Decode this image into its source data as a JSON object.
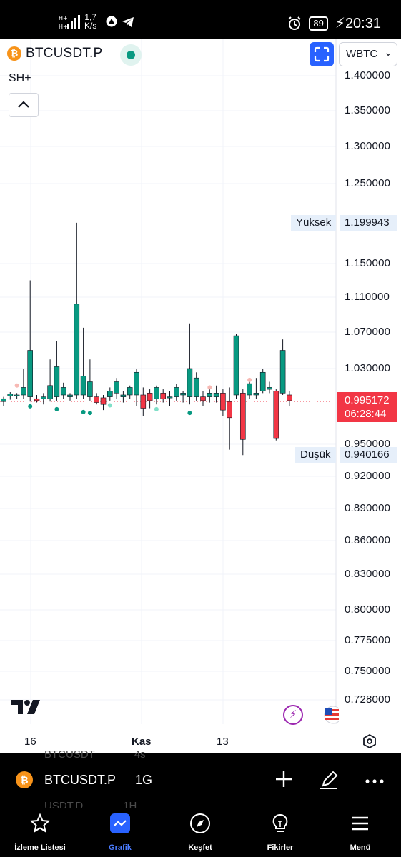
{
  "status_bar": {
    "net_speed_value": "1,7",
    "net_speed_unit": "K/s",
    "battery": "89",
    "time": "20:31"
  },
  "header": {
    "symbol": "BTCUSDT.P",
    "indicator": "SH+",
    "pair_select": "WBTC"
  },
  "chart_data": {
    "type": "candlestick",
    "y_ticks": [
      "1.400000",
      "1.350000",
      "1.300000",
      "1.250000",
      "1.150000",
      "1.110000",
      "1.070000",
      "1.030000",
      "0.950000",
      "0.920000",
      "0.890000",
      "0.860000",
      "0.830000",
      "0.800000",
      "0.775000",
      "0.750000",
      "0.728000"
    ],
    "x_ticks": [
      "16",
      "Kas",
      "13"
    ],
    "high_label": "Yüksek",
    "high_value": "1.199943",
    "low_label": "Düşük",
    "low_value": "0.940166",
    "last_price": "0.995172",
    "countdown": "06:28:44",
    "colors": {
      "up": "#089981",
      "down": "#f23645",
      "wick": "#131722"
    },
    "candles": [
      {
        "o": 0.995,
        "h": 1.0,
        "l": 0.99,
        "c": 0.998
      },
      {
        "o": 1.001,
        "h": 1.005,
        "l": 0.997,
        "c": 1.003
      },
      {
        "o": 1.002,
        "h": 1.004,
        "l": 0.998,
        "c": 1.002
      },
      {
        "o": 1.002,
        "h": 1.03,
        "l": 0.998,
        "c": 1.01
      },
      {
        "o": 1.0,
        "h": 1.13,
        "l": 0.995,
        "c": 1.05
      },
      {
        "o": 0.998,
        "h": 1.002,
        "l": 0.994,
        "c": 0.996
      },
      {
        "o": 0.998,
        "h": 1.004,
        "l": 0.992,
        "c": 1.0
      },
      {
        "o": 0.998,
        "h": 1.04,
        "l": 0.995,
        "c": 1.012
      },
      {
        "o": 1.0,
        "h": 1.06,
        "l": 0.996,
        "c": 1.032
      },
      {
        "o": 1.002,
        "h": 1.015,
        "l": 0.998,
        "c": 1.01
      },
      {
        "o": 1.0,
        "h": 1.004,
        "l": 0.996,
        "c": 1.002
      },
      {
        "o": 1.002,
        "h": 1.2,
        "l": 0.998,
        "c": 1.102
      },
      {
        "o": 1.002,
        "h": 1.075,
        "l": 0.998,
        "c": 1.022
      },
      {
        "o": 1.0,
        "h": 1.04,
        "l": 0.996,
        "c": 1.016
      },
      {
        "o": 1.0,
        "h": 1.004,
        "l": 0.992,
        "c": 0.994
      },
      {
        "o": 0.999,
        "h": 1.002,
        "l": 0.986,
        "c": 0.992
      },
      {
        "o": 1.0,
        "h": 1.01,
        "l": 0.996,
        "c": 1.006
      },
      {
        "o": 1.004,
        "h": 1.02,
        "l": 0.998,
        "c": 1.016
      },
      {
        "o": 1.0,
        "h": 1.006,
        "l": 0.994,
        "c": 1.002
      },
      {
        "o": 1.002,
        "h": 1.012,
        "l": 0.998,
        "c": 1.01
      },
      {
        "o": 1.002,
        "h": 1.03,
        "l": 0.99,
        "c": 1.026
      },
      {
        "o": 1.002,
        "h": 1.01,
        "l": 0.98,
        "c": 0.988
      },
      {
        "o": 1.004,
        "h": 1.008,
        "l": 0.988,
        "c": 0.996
      },
      {
        "o": 0.998,
        "h": 1.012,
        "l": 0.992,
        "c": 1.01
      },
      {
        "o": 1.004,
        "h": 1.008,
        "l": 0.994,
        "c": 0.998
      },
      {
        "o": 1.0,
        "h": 1.006,
        "l": 0.99,
        "c": 1.0
      },
      {
        "o": 1.0,
        "h": 1.014,
        "l": 0.996,
        "c": 1.01
      },
      {
        "o": 1.002,
        "h": 1.006,
        "l": 0.994,
        "c": 1.004
      },
      {
        "o": 1.0,
        "h": 1.08,
        "l": 0.992,
        "c": 1.03
      },
      {
        "o": 1.0,
        "h": 1.026,
        "l": 0.996,
        "c": 1.02
      },
      {
        "o": 1.0,
        "h": 1.006,
        "l": 0.99,
        "c": 0.996
      },
      {
        "o": 1.0,
        "h": 1.008,
        "l": 0.994,
        "c": 1.004
      },
      {
        "o": 1.0,
        "h": 1.012,
        "l": 0.994,
        "c": 1.004
      },
      {
        "o": 1.004,
        "h": 1.008,
        "l": 0.98,
        "c": 0.986
      },
      {
        "o": 0.995,
        "h": 1.01,
        "l": 0.945,
        "c": 0.978
      },
      {
        "o": 1.002,
        "h": 1.068,
        "l": 0.998,
        "c": 1.066
      },
      {
        "o": 1.004,
        "h": 1.008,
        "l": 0.94,
        "c": 0.955
      },
      {
        "o": 1.002,
        "h": 1.016,
        "l": 0.998,
        "c": 1.014
      },
      {
        "o": 1.002,
        "h": 1.02,
        "l": 0.998,
        "c": 1.004
      },
      {
        "o": 1.006,
        "h": 1.03,
        "l": 1.004,
        "c": 1.026
      },
      {
        "o": 1.008,
        "h": 1.016,
        "l": 1.004,
        "c": 1.01
      },
      {
        "o": 1.006,
        "h": 1.008,
        "l": 0.954,
        "c": 0.956
      },
      {
        "o": 1.004,
        "h": 1.062,
        "l": 1.002,
        "c": 1.05
      },
      {
        "o": 1.002,
        "h": 1.006,
        "l": 0.99,
        "c": 0.996
      }
    ],
    "markers_below": [
      {
        "i": 4,
        "v": 0.99,
        "color": "#089981"
      },
      {
        "i": 8,
        "v": 0.987,
        "color": "#089981"
      },
      {
        "i": 12,
        "v": 0.984,
        "color": "#089981"
      },
      {
        "i": 13,
        "v": 0.983,
        "color": "#089981"
      },
      {
        "i": 16,
        "v": 0.991,
        "color": "#80dfc8"
      },
      {
        "i": 23,
        "v": 0.987,
        "color": "#80dfc8"
      },
      {
        "i": 28,
        "v": 0.983,
        "color": "#089981"
      }
    ],
    "markers_above": [
      {
        "i": 2,
        "v": 1.012,
        "color": "#f7b9b4"
      },
      {
        "i": 31,
        "v": 1.01,
        "color": "#f7b9b4"
      },
      {
        "i": 37,
        "v": 1.018,
        "color": "#f7b9b4"
      }
    ]
  },
  "symbol_bar": {
    "ghost_top_symbol": "BTCUSDT",
    "ghost_top_interval": "4s",
    "symbol": "BTCUSDT.P",
    "interval": "1G",
    "ghost_bottom_symbol": "USDT.D",
    "ghost_bottom_interval": "1H"
  },
  "nav": {
    "watchlist": "İzleme Listesi",
    "chart": "Grafik",
    "explore": "Keşfet",
    "ideas": "Fikirler",
    "menu": "Menü"
  }
}
